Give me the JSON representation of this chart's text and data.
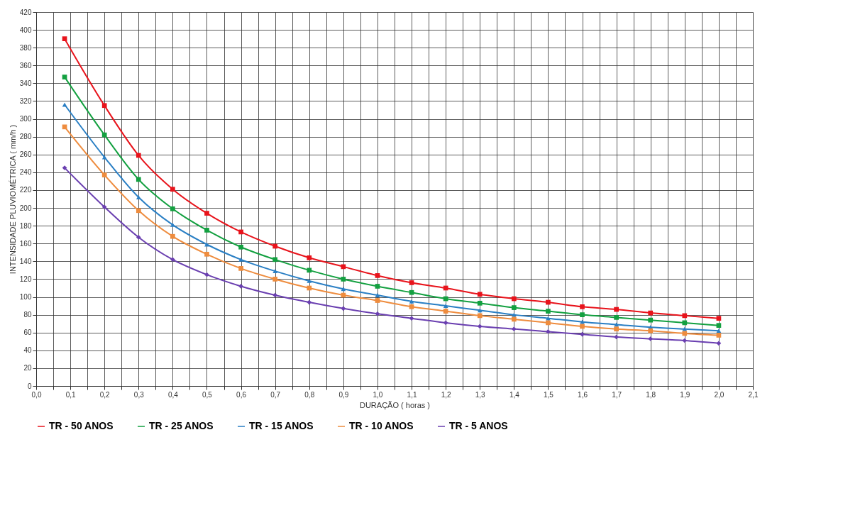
{
  "chart_data": {
    "type": "line",
    "xlabel": "DURAÇÃO  ( horas )",
    "ylabel": "INTENSIDADE PLUVIOMÉTRICA ( mm/h )",
    "x": [
      0.0833,
      0.2,
      0.3,
      0.4,
      0.5,
      0.6,
      0.7,
      0.8,
      0.9,
      1.0,
      1.1,
      1.2,
      1.3,
      1.4,
      1.5,
      1.6,
      1.7,
      1.8,
      1.9,
      2.0
    ],
    "series": [
      {
        "name": "TR - 50 ANOS",
        "color": "#e8131b",
        "marker": "square",
        "values": [
          390,
          315,
          259,
          221,
          194,
          173,
          157,
          144,
          134,
          124,
          116,
          110,
          103,
          98,
          94,
          89,
          86,
          82,
          79,
          76
        ]
      },
      {
        "name": "TR - 25 ANOS",
        "color": "#13a040",
        "marker": "square",
        "values": [
          347,
          282,
          232,
          199,
          175,
          156,
          142,
          130,
          120,
          112,
          105,
          98,
          93,
          88,
          84,
          80,
          77,
          74,
          71,
          68
        ]
      },
      {
        "name": "TR - 15 ANOS",
        "color": "#2a7fc4",
        "marker": "triangle",
        "values": [
          316,
          257,
          212,
          181,
          159,
          142,
          129,
          118,
          109,
          102,
          95,
          90,
          85,
          80,
          76,
          72,
          69,
          66,
          64,
          62
        ]
      },
      {
        "name": "TR - 10 ANOS",
        "color": "#ee8c3e",
        "marker": "square",
        "values": [
          291,
          237,
          197,
          168,
          148,
          132,
          120,
          110,
          102,
          96,
          89,
          84,
          79,
          75,
          71,
          67,
          64,
          62,
          59,
          57
        ]
      },
      {
        "name": "TR - 5 ANOS",
        "color": "#6a3fb0",
        "marker": "diamond",
        "values": [
          245,
          201,
          167,
          142,
          125,
          112,
          102,
          94,
          87,
          81,
          76,
          71,
          67,
          64,
          61,
          58,
          55,
          53,
          51,
          48
        ]
      }
    ],
    "xlim": [
      0,
      2.1
    ],
    "xticks": [
      {
        "value": 0,
        "label": "0,0"
      },
      {
        "value": 0.05,
        "label": null
      },
      {
        "value": 0.1,
        "label": "0,1"
      },
      {
        "value": 0.15,
        "label": null
      },
      {
        "value": 0.2,
        "label": "0,2"
      },
      {
        "value": 0.25,
        "label": null
      },
      {
        "value": 0.3,
        "label": "0,3"
      },
      {
        "value": 0.35,
        "label": null
      },
      {
        "value": 0.4,
        "label": "0,4"
      },
      {
        "value": 0.45,
        "label": null
      },
      {
        "value": 0.5,
        "label": "0,5"
      },
      {
        "value": 0.55,
        "label": null
      },
      {
        "value": 0.6,
        "label": "0,6"
      },
      {
        "value": 0.65,
        "label": null
      },
      {
        "value": 0.7,
        "label": "0,7"
      },
      {
        "value": 0.75,
        "label": null
      },
      {
        "value": 0.8,
        "label": "0,8"
      },
      {
        "value": 0.85,
        "label": null
      },
      {
        "value": 0.9,
        "label": "0,9"
      },
      {
        "value": 0.95,
        "label": null
      },
      {
        "value": 1.0,
        "label": "1,0"
      },
      {
        "value": 1.05,
        "label": null
      },
      {
        "value": 1.1,
        "label": "1,1"
      },
      {
        "value": 1.15,
        "label": null
      },
      {
        "value": 1.2,
        "label": "1,2"
      },
      {
        "value": 1.25,
        "label": null
      },
      {
        "value": 1.3,
        "label": "1,3"
      },
      {
        "value": 1.35,
        "label": null
      },
      {
        "value": 1.4,
        "label": "1,4"
      },
      {
        "value": 1.45,
        "label": null
      },
      {
        "value": 1.5,
        "label": "1,5"
      },
      {
        "value": 1.55,
        "label": null
      },
      {
        "value": 1.6,
        "label": "1,6"
      },
      {
        "value": 1.65,
        "label": null
      },
      {
        "value": 1.7,
        "label": "1,7"
      },
      {
        "value": 1.75,
        "label": null
      },
      {
        "value": 1.8,
        "label": "1,8"
      },
      {
        "value": 1.85,
        "label": null
      },
      {
        "value": 1.9,
        "label": "1,9"
      },
      {
        "value": 1.95,
        "label": null
      },
      {
        "value": 2.0,
        "label": "2,0"
      },
      {
        "value": 2.05,
        "label": null
      },
      {
        "value": 2.1,
        "label": "2,1"
      }
    ],
    "ylim": [
      0,
      420
    ],
    "yticks": [
      0,
      20,
      40,
      60,
      80,
      100,
      120,
      140,
      160,
      180,
      200,
      220,
      240,
      260,
      280,
      300,
      320,
      340,
      360,
      380,
      400,
      420
    ],
    "grid": true,
    "legend": "bottom",
    "line_style": "solid"
  }
}
